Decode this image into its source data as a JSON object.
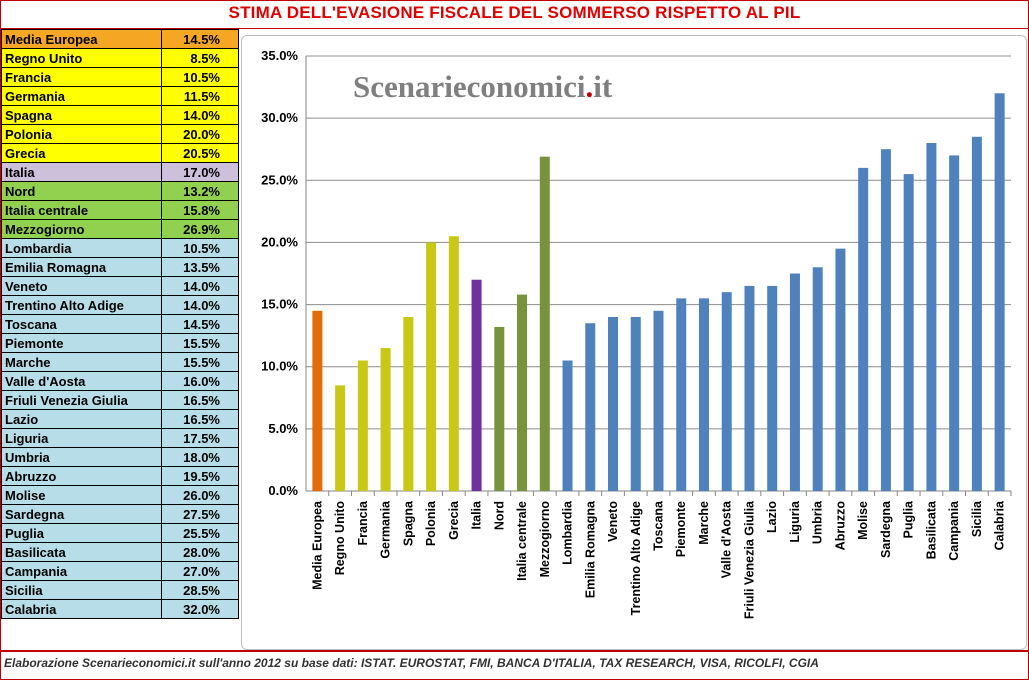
{
  "title": "STIMA DELL'EVASIONE FISCALE DEL SOMMERSO RISPETTO AL PIL",
  "footer": "Elaborazione Scenarieconomici.it sull'anno 2012 su base dati: ISTAT. EUROSTAT, FMI, BANCA D'ITALIA, TAX RESEARCH, VISA, RICOLFI, CGIA",
  "watermark": {
    "main": "Scenarieconomici",
    "dot": ".",
    "tld": "it",
    "color": "#7f7f7f",
    "dot_color": "#c00000"
  },
  "table_rows": [
    {
      "label": "Media Europea",
      "value": "14.5%",
      "bg": "#f5a623"
    },
    {
      "label": "Regno Unito",
      "value": "8.5%",
      "bg": "#ffff00"
    },
    {
      "label": "Francia",
      "value": "10.5%",
      "bg": "#ffff00"
    },
    {
      "label": "Germania",
      "value": "11.5%",
      "bg": "#ffff00"
    },
    {
      "label": "Spagna",
      "value": "14.0%",
      "bg": "#ffff00"
    },
    {
      "label": "Polonia",
      "value": "20.0%",
      "bg": "#ffff00"
    },
    {
      "label": "Grecia",
      "value": "20.5%",
      "bg": "#ffff00"
    },
    {
      "label": "Italia",
      "value": "17.0%",
      "bg": "#ccc0da"
    },
    {
      "label": "Nord",
      "value": "13.2%",
      "bg": "#92d050"
    },
    {
      "label": "Italia centrale",
      "value": "15.8%",
      "bg": "#92d050"
    },
    {
      "label": "Mezzogiorno",
      "value": "26.9%",
      "bg": "#92d050"
    },
    {
      "label": "Lombardia",
      "value": "10.5%",
      "bg": "#b7dee8"
    },
    {
      "label": "Emilia Romagna",
      "value": "13.5%",
      "bg": "#b7dee8"
    },
    {
      "label": "Veneto",
      "value": "14.0%",
      "bg": "#b7dee8"
    },
    {
      "label": "Trentino Alto Adige",
      "value": "14.0%",
      "bg": "#b7dee8"
    },
    {
      "label": "Toscana",
      "value": "14.5%",
      "bg": "#b7dee8"
    },
    {
      "label": "Piemonte",
      "value": "15.5%",
      "bg": "#b7dee8"
    },
    {
      "label": "Marche",
      "value": "15.5%",
      "bg": "#b7dee8"
    },
    {
      "label": "Valle d'Aosta",
      "value": "16.0%",
      "bg": "#b7dee8"
    },
    {
      "label": "Friuli Venezia Giulia",
      "value": "16.5%",
      "bg": "#b7dee8"
    },
    {
      "label": "Lazio",
      "value": "16.5%",
      "bg": "#b7dee8"
    },
    {
      "label": "Liguria",
      "value": "17.5%",
      "bg": "#b7dee8"
    },
    {
      "label": "Umbria",
      "value": "18.0%",
      "bg": "#b7dee8"
    },
    {
      "label": "Abruzzo",
      "value": "19.5%",
      "bg": "#b7dee8"
    },
    {
      "label": "Molise",
      "value": "26.0%",
      "bg": "#b7dee8"
    },
    {
      "label": "Sardegna",
      "value": "27.5%",
      "bg": "#b7dee8"
    },
    {
      "label": "Puglia",
      "value": "25.5%",
      "bg": "#b7dee8"
    },
    {
      "label": "Basilicata",
      "value": "28.0%",
      "bg": "#b7dee8"
    },
    {
      "label": "Campania",
      "value": "27.0%",
      "bg": "#b7dee8"
    },
    {
      "label": "Sicilia",
      "value": "28.5%",
      "bg": "#b7dee8"
    },
    {
      "label": "Calabria",
      "value": "32.0%",
      "bg": "#b7dee8"
    }
  ],
  "chart_data": {
    "type": "bar",
    "title": "",
    "xlabel": "",
    "ylabel": "",
    "ylim": [
      0,
      35
    ],
    "yticks": [
      "0.0%",
      "5.0%",
      "10.0%",
      "15.0%",
      "20.0%",
      "25.0%",
      "30.0%",
      "35.0%"
    ],
    "grid": true,
    "categories": [
      "Media Europea",
      "Regno Unito",
      "Francia",
      "Germania",
      "Spagna",
      "Polonia",
      "Grecia",
      "Italia",
      "Nord",
      "Italia centrale",
      "Mezzogiorno",
      "Lombardia",
      "Emilia Romagna",
      "Veneto",
      "Trentino Alto Adige",
      "Toscana",
      "Piemonte",
      "Marche",
      "Valle d'Aosta",
      "Friuli Venezia Giulia",
      "Lazio",
      "Liguria",
      "Umbria",
      "Abruzzo",
      "Molise",
      "Sardegna",
      "Puglia",
      "Basilicata",
      "Campania",
      "Sicilia",
      "Calabria"
    ],
    "values": [
      14.5,
      8.5,
      10.5,
      11.5,
      14.0,
      20.0,
      20.5,
      17.0,
      13.2,
      15.8,
      26.9,
      10.5,
      13.5,
      14.0,
      14.0,
      14.5,
      15.5,
      15.5,
      16.0,
      16.5,
      16.5,
      17.5,
      18.0,
      19.5,
      26.0,
      27.5,
      25.5,
      28.0,
      27.0,
      28.5,
      32.0
    ],
    "colors": [
      "#e36c0a",
      "#c9c816",
      "#c9c816",
      "#c9c816",
      "#c9c816",
      "#c9c816",
      "#c9c816",
      "#7030a0",
      "#77933c",
      "#77933c",
      "#77933c",
      "#4f81bd",
      "#4f81bd",
      "#4f81bd",
      "#4f81bd",
      "#4f81bd",
      "#4f81bd",
      "#4f81bd",
      "#4f81bd",
      "#4f81bd",
      "#4f81bd",
      "#4f81bd",
      "#4f81bd",
      "#4f81bd",
      "#4f81bd",
      "#4f81bd",
      "#4f81bd",
      "#4f81bd",
      "#4f81bd",
      "#4f81bd",
      "#4f81bd"
    ]
  }
}
